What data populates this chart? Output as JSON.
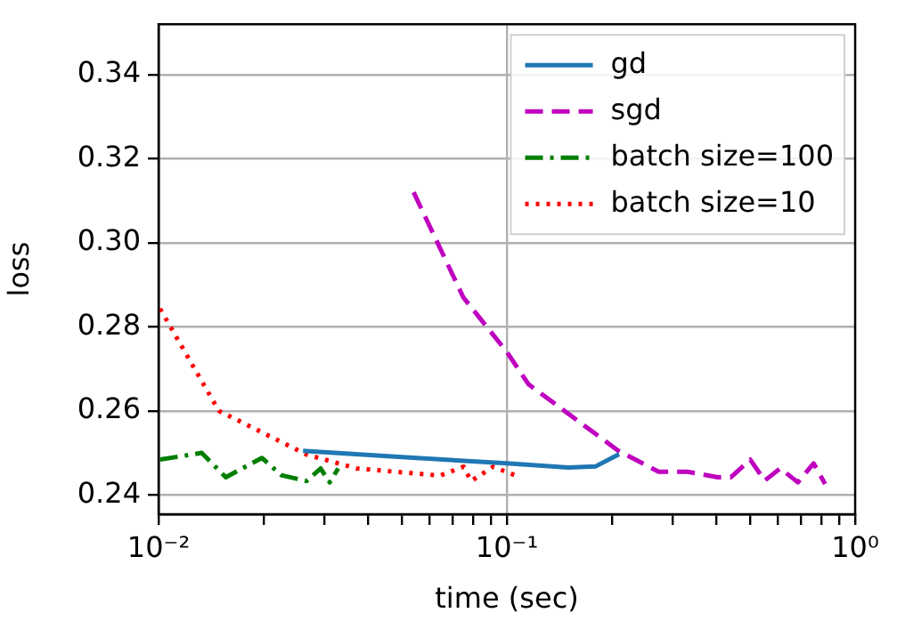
{
  "chart_data": {
    "type": "line",
    "xlabel": "time (sec)",
    "ylabel": "loss",
    "log": "x",
    "grid": true,
    "legend": "top right",
    "xlim": [
      0.01,
      1
    ],
    "ylim": [
      0.2354,
      0.352
    ],
    "xticks": [
      {
        "value": 0.01,
        "label": "10⁻²"
      },
      {
        "value": 0.02,
        "label": null
      },
      {
        "value": 0.03,
        "label": null
      },
      {
        "value": 0.04,
        "label": null
      },
      {
        "value": 0.05,
        "label": null
      },
      {
        "value": 0.06,
        "label": null
      },
      {
        "value": 0.07,
        "label": null
      },
      {
        "value": 0.08,
        "label": null
      },
      {
        "value": 0.09,
        "label": null
      },
      {
        "value": 0.1,
        "label": "10⁻¹"
      },
      {
        "value": 0.2,
        "label": null
      },
      {
        "value": 0.3,
        "label": null
      },
      {
        "value": 0.4,
        "label": null
      },
      {
        "value": 0.5,
        "label": null
      },
      {
        "value": 0.6,
        "label": null
      },
      {
        "value": 0.7,
        "label": null
      },
      {
        "value": 0.8,
        "label": null
      },
      {
        "value": 0.9,
        "label": null
      },
      {
        "value": 1,
        "label": "10⁰"
      }
    ],
    "yticks": [
      {
        "value": 0.24,
        "label": "0.24"
      },
      {
        "value": 0.26,
        "label": "0.26"
      },
      {
        "value": 0.28,
        "label": "0.28"
      },
      {
        "value": 0.3,
        "label": "0.30"
      },
      {
        "value": 0.32,
        "label": "0.32"
      },
      {
        "value": 0.34,
        "label": "0.34"
      }
    ],
    "series": [
      {
        "name": "gd",
        "color": "#1f77b4",
        "line_style": "solid",
        "x": [
          0.026,
          0.05,
          0.1,
          0.15,
          0.18,
          0.21
        ],
        "values": [
          0.2505,
          0.249,
          0.2475,
          0.2465,
          0.2468,
          0.2497
        ]
      },
      {
        "name": "sgd",
        "color": "#bf00bf",
        "line_style": "dashed",
        "x": [
          0.054,
          0.075,
          0.1,
          0.1155,
          0.209,
          0.273,
          0.33,
          0.404,
          0.44,
          0.5,
          0.55,
          0.61,
          0.685,
          0.76,
          0.82
        ],
        "values": [
          0.312,
          0.287,
          0.274,
          0.2663,
          0.2505,
          0.2455,
          0.2455,
          0.2442,
          0.2442,
          0.2484,
          0.2434,
          0.2463,
          0.243,
          0.2475,
          0.2426
        ]
      },
      {
        "name": "batch size=100",
        "color": "#007f00",
        "line_style": "dashdot",
        "x": [
          0.0101,
          0.0133,
          0.0156,
          0.0198,
          0.0225,
          0.0266,
          0.0292,
          0.031,
          0.0328
        ],
        "values": [
          0.2484,
          0.25,
          0.2442,
          0.2488,
          0.2447,
          0.2433,
          0.2463,
          0.243,
          0.2463
        ]
      },
      {
        "name": "batch size=10",
        "color": "#ff0000",
        "line_style": "dotted",
        "x": [
          0.0101,
          0.0149,
          0.0266,
          0.037,
          0.0643,
          0.0751,
          0.079,
          0.0913,
          0.106
        ],
        "values": [
          0.2843,
          0.26,
          0.2496,
          0.2463,
          0.2446,
          0.2467,
          0.2433,
          0.2467,
          0.2446
        ]
      }
    ]
  }
}
